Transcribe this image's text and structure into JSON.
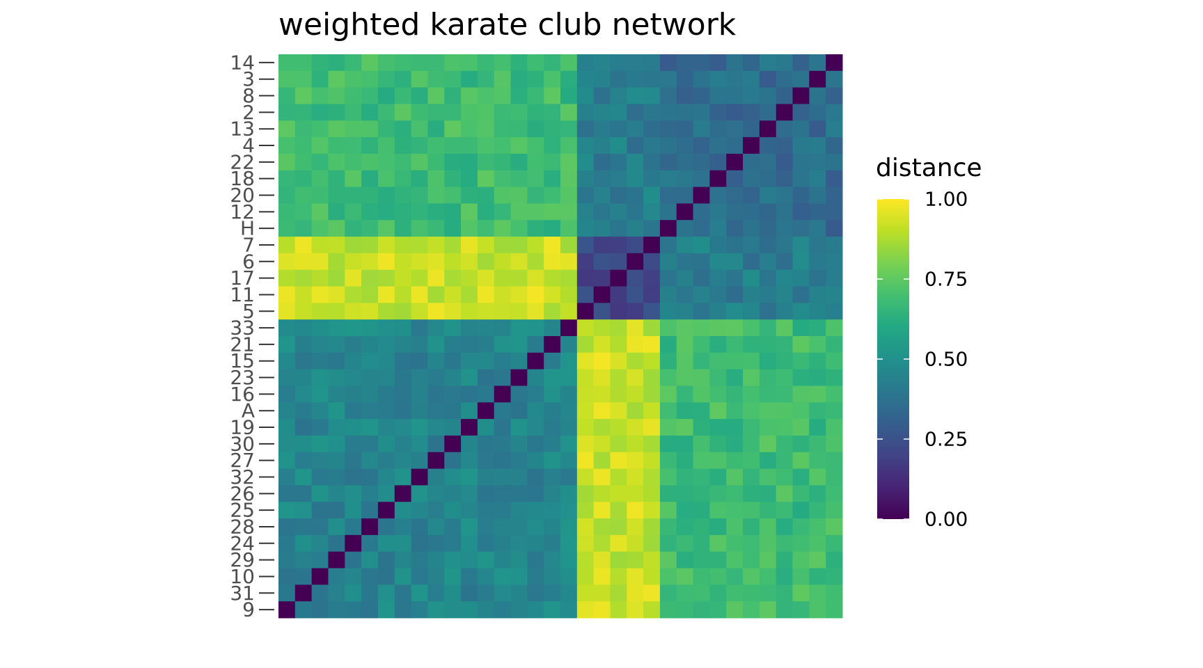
{
  "chart_data": {
    "type": "heatmap",
    "title": "weighted karate club network",
    "xlabel": "",
    "ylabel": "",
    "order": [
      "9",
      "31",
      "10",
      "29",
      "24",
      "28",
      "25",
      "26",
      "32",
      "27",
      "30",
      "19",
      "A",
      "16",
      "23",
      "15",
      "21",
      "33",
      "5",
      "11",
      "17",
      "6",
      "7",
      "H",
      "12",
      "20",
      "18",
      "22",
      "4",
      "13",
      "2",
      "8",
      "3",
      "14"
    ],
    "y_tick_labels_top_to_bottom": [
      "14",
      "3",
      "8",
      "2",
      "13",
      "4",
      "22",
      "18",
      "20",
      "12",
      "H",
      "7",
      "6",
      "17",
      "11",
      "5",
      "33",
      "21",
      "15",
      "23",
      "16",
      "A",
      "19",
      "30",
      "27",
      "32",
      "26",
      "25",
      "28",
      "24",
      "29",
      "10",
      "31",
      "9"
    ],
    "x_tick_labels": [],
    "groups": {
      "A_group": [
        "9",
        "31",
        "10",
        "29",
        "24",
        "28",
        "25",
        "26",
        "32",
        "27",
        "30",
        "19",
        "A",
        "16",
        "23",
        "15",
        "21",
        "33"
      ],
      "H_subgroup_1": [
        "5",
        "11",
        "17",
        "6",
        "7"
      ],
      "H_subgroup_2": [
        "H",
        "12",
        "20",
        "18",
        "22",
        "4",
        "13",
        "2",
        "8",
        "3",
        "14"
      ]
    },
    "approx_distance_within_A_group": 0.45,
    "approx_distance_within_H_subgroup_1": 0.22,
    "approx_distance_within_H_subgroup_2": 0.35,
    "approx_distance_A_to_H_subgroup_1": 0.92,
    "approx_distance_A_to_H_subgroup_2": 0.68,
    "approx_distance_H_subgroup_1_to_H_subgroup_2": 0.42,
    "diagonal_value": 0.0,
    "color_scale": "viridis",
    "value_range": [
      0,
      1
    ],
    "legend": {
      "title": "distance",
      "ticks": [
        "1.00",
        "0.75",
        "0.50",
        "0.25",
        "0.00"
      ],
      "tick_values": [
        1.0,
        0.75,
        0.5,
        0.25,
        0.0
      ],
      "position": "right"
    },
    "grid": false
  }
}
